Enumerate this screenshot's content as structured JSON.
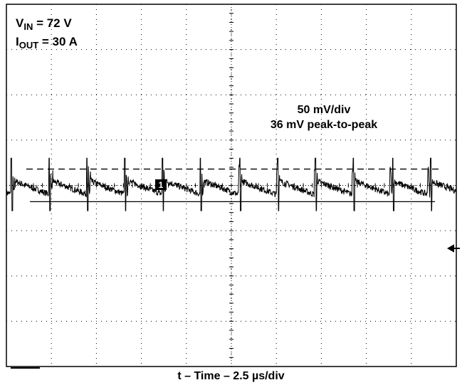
{
  "chart_data": {
    "type": "line",
    "title": "",
    "xlabel": "t – Time – 2.5 µs/div",
    "ylabel": "",
    "grid": true,
    "conditions": {
      "vin_label": "V",
      "vin_sub": "IN",
      "vin_value": " = 72 V",
      "iout_label": "I",
      "iout_sub": "OUT",
      "iout_value": " = 30 A"
    },
    "annotations": {
      "scale": "50 mV/div",
      "ripple": "36 mV peak-to-peak"
    },
    "channel_marker": "1",
    "x_divisions": 10,
    "y_divisions": 8,
    "x_per_div_us": 2.5,
    "y_per_div_mV": 50,
    "xlim_us": [
      0,
      25
    ],
    "ylim_mV": [
      -200,
      200
    ],
    "peak_mV": 18,
    "trough_mV": -18,
    "spike_times_us": [
      0.3,
      2.4,
      4.5,
      6.6,
      8.7,
      10.8,
      13.0,
      15.1,
      17.2,
      19.3,
      21.5,
      23.6
    ],
    "trace_colors": {
      "signal": "#000000",
      "grid": "#000000"
    }
  }
}
